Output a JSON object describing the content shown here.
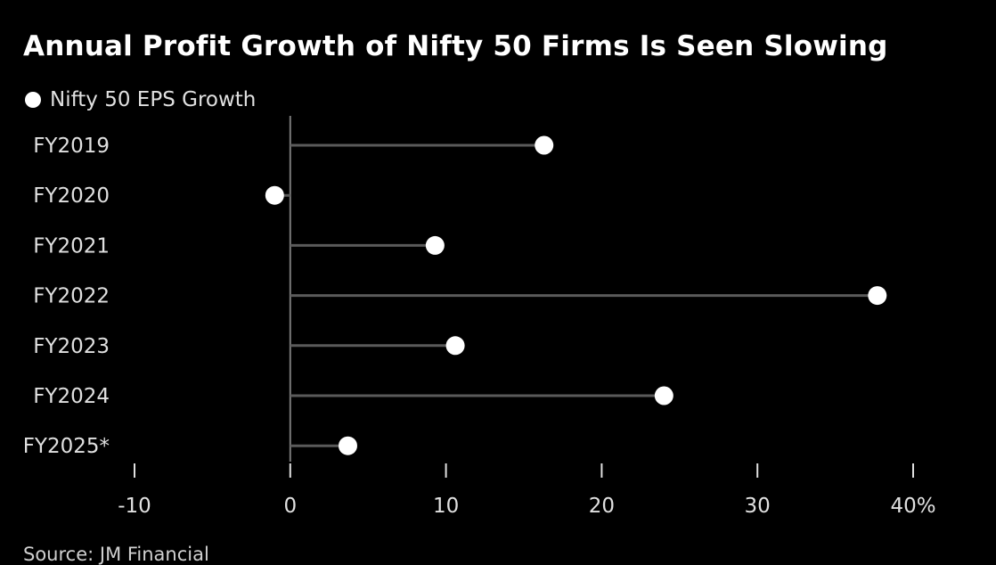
{
  "chart_data": {
    "type": "lollipop",
    "title": "Annual Profit Growth of Nifty 50 Firms Is Seen Slowing",
    "series": [
      {
        "name": "Nifty 50 EPS Growth",
        "color": "#ffffff",
        "values": [
          16.3,
          -1.0,
          9.3,
          37.7,
          10.6,
          24.0,
          3.7
        ]
      }
    ],
    "categories": [
      "FY2019",
      "FY2020",
      "FY2021",
      "FY2022",
      "FY2023",
      "FY2024",
      "FY2025*"
    ],
    "xlim": [
      -10,
      40
    ],
    "x_ticks": [
      {
        "value": -10,
        "label": "-10"
      },
      {
        "value": 0,
        "label": "0"
      },
      {
        "value": 10,
        "label": "10"
      },
      {
        "value": 20,
        "label": "20"
      },
      {
        "value": 30,
        "label": "30"
      },
      {
        "value": 40,
        "label": "40%"
      }
    ],
    "source": "Source: JM Financial",
    "colors": {
      "background": "#000000",
      "stem": "#5a5a5a",
      "axis": "#7a7a7a",
      "dot": "#ffffff",
      "text": "#e0e0e0"
    }
  }
}
